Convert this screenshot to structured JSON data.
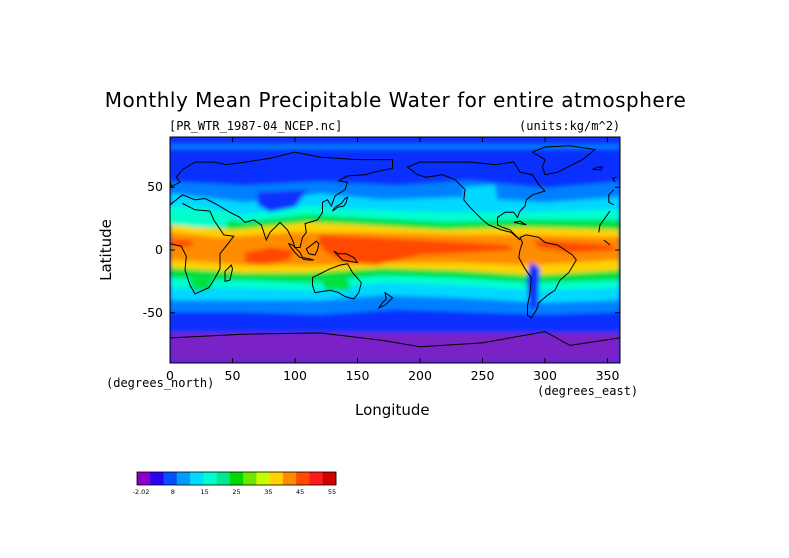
{
  "title": "Monthly Mean Precipitable Water for entire atmosphere",
  "file_label": "[PR_WTR_1987-04_NCEP.nc]",
  "units_label": "(units:kg/m^2)",
  "xlabel": "Longitude",
  "ylabel": "Latitude",
  "x_unit": "(degrees_east)",
  "y_unit": "(degrees_north)",
  "x_ticks": [
    "0",
    "50",
    "100",
    "150",
    "200",
    "250",
    "300",
    "350"
  ],
  "y_ticks": [
    "50",
    "0",
    "-50"
  ],
  "colorbar": {
    "labels": [
      "-2.02",
      "8",
      "15",
      "25",
      "35",
      "45",
      "55"
    ],
    "colors": [
      "#8a00c8",
      "#2a00f0",
      "#0050ff",
      "#009cff",
      "#00dcff",
      "#00ffd0",
      "#00e890",
      "#00d800",
      "#6ee600",
      "#c8ff00",
      "#ffd200",
      "#ff8c00",
      "#ff4a00",
      "#ff1a1a",
      "#d00000"
    ]
  },
  "colors": {
    "polar": "#7a20c8",
    "deep_blue": "#0a30ff",
    "mid_blue": "#0080ff",
    "cyan": "#00d8ff",
    "aqua": "#00ffcc",
    "green": "#00e040",
    "yellow": "#ffd200",
    "orange": "#ff8c00",
    "red": "#ff4a00"
  }
}
